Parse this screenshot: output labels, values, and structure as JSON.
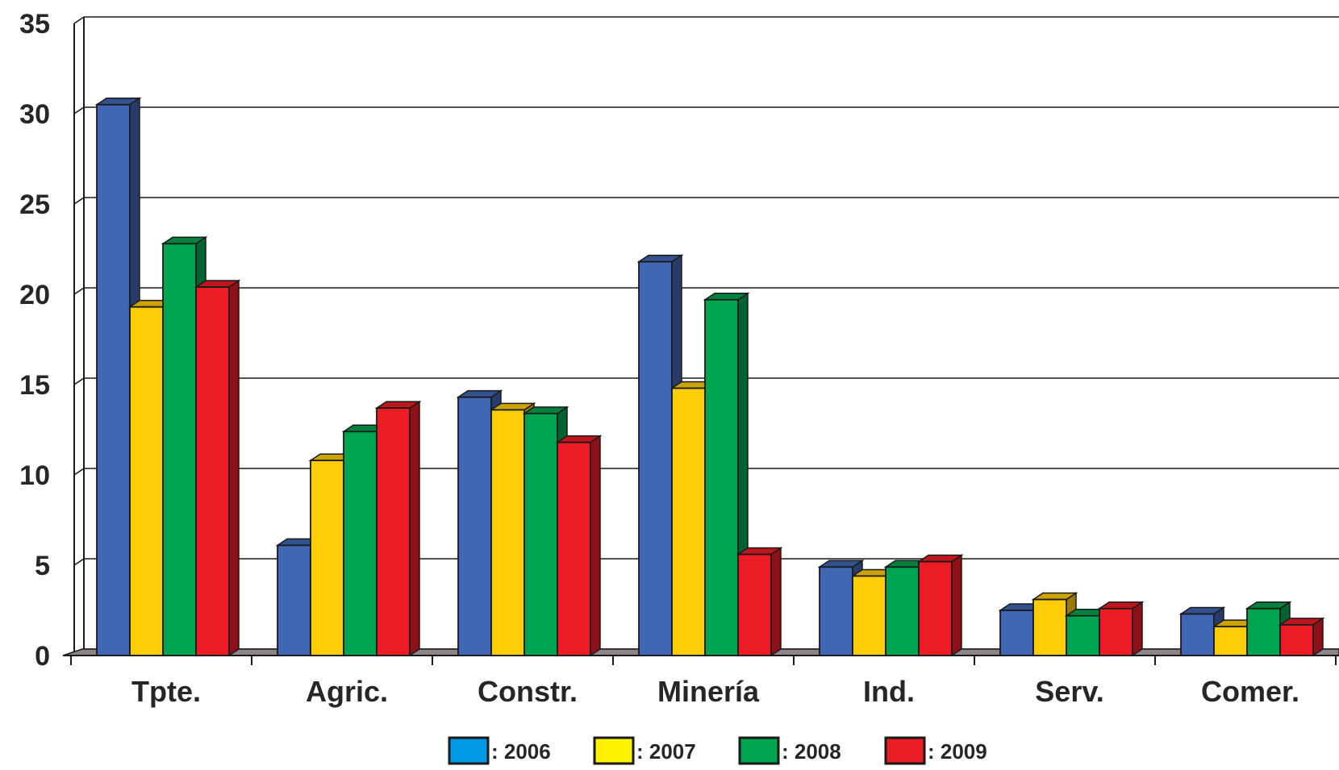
{
  "chart_data": {
    "type": "bar",
    "style": "3d-clustered-column",
    "categories": [
      "Tpte.",
      "Agric.",
      "Constr.",
      "Minería",
      "Ind.",
      "Serv.",
      "Comer."
    ],
    "series": [
      {
        "name": ": 2006",
        "color": "#3f66b2",
        "values": [
          30.5,
          6.1,
          14.3,
          21.8,
          4.9,
          2.5,
          2.3
        ]
      },
      {
        "name": ": 2007",
        "color": "#ffcc08",
        "values": [
          19.3,
          10.8,
          13.6,
          14.8,
          4.4,
          3.1,
          1.6
        ]
      },
      {
        "name": ": 2008",
        "color": "#00a34e",
        "values": [
          22.8,
          12.4,
          13.4,
          19.7,
          4.9,
          2.2,
          2.6
        ]
      },
      {
        "name": ": 2009",
        "color": "#ec1c24",
        "values": [
          20.4,
          13.7,
          11.8,
          5.6,
          5.2,
          2.6,
          1.7
        ]
      }
    ],
    "legend_swatch_colors": [
      "#0099e5",
      "#fff200",
      "#00a34e",
      "#ec1c24"
    ],
    "ylim": [
      0,
      35
    ],
    "yticks": [
      "0",
      "5",
      "10",
      "15",
      "20",
      "25",
      "30",
      "35"
    ],
    "grid": true,
    "legend_position": "bottom",
    "title": "",
    "xlabel": "",
    "ylabel": ""
  }
}
